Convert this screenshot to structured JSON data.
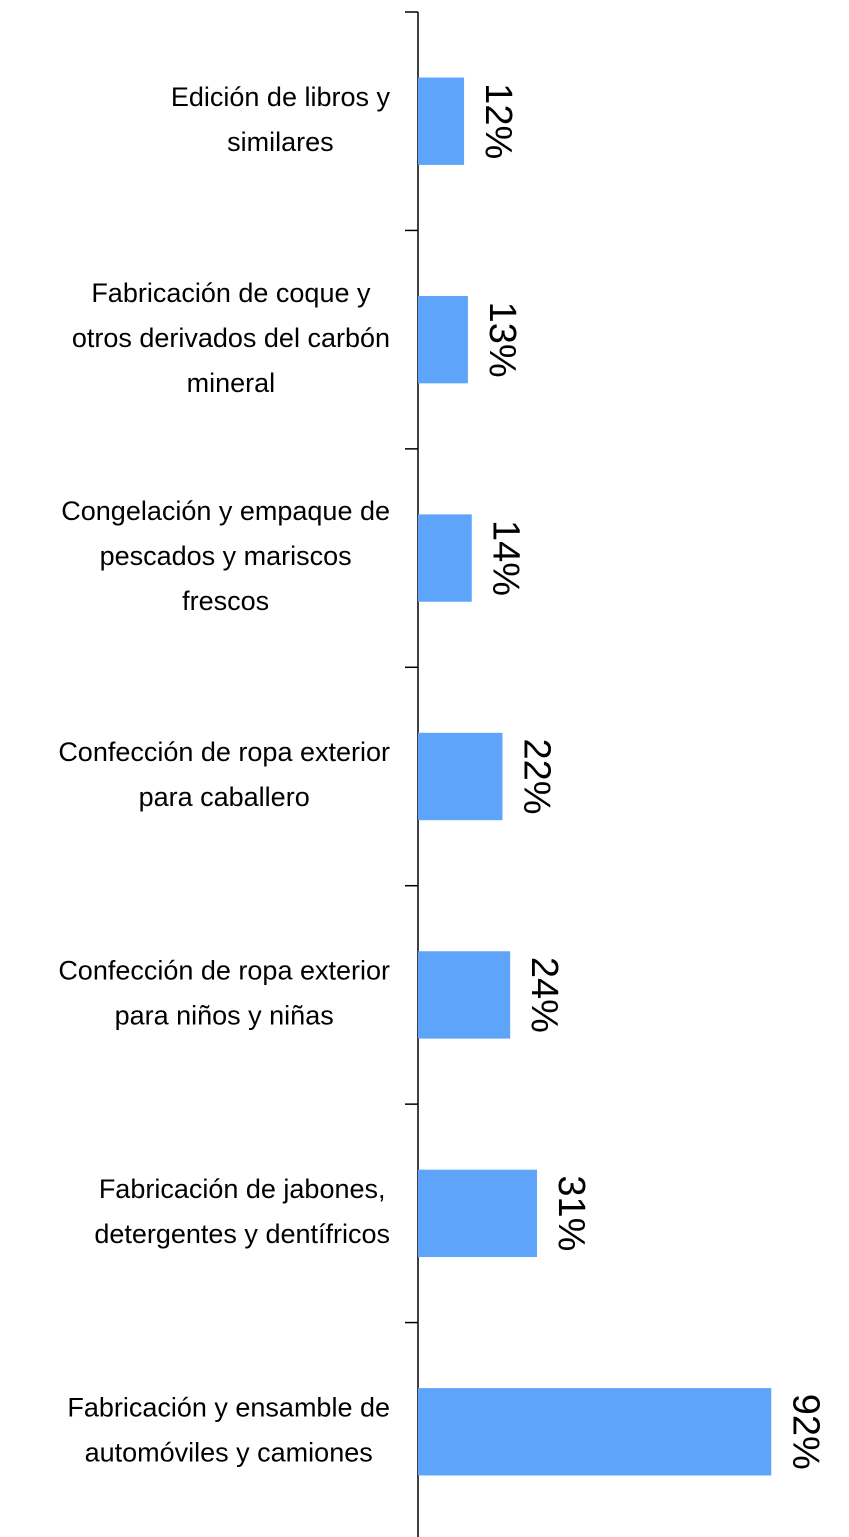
{
  "chart_data": {
    "type": "bar",
    "orientation": "horizontal",
    "categories": [
      [
        "Edición de libros y",
        "similares"
      ],
      [
        "Fabricación de coque y",
        "otros derivados del carbón",
        "mineral"
      ],
      [
        "Congelación y empaque de",
        "pescados y mariscos",
        "frescos"
      ],
      [
        "Confección de ropa exterior",
        "para caballero"
      ],
      [
        "Confección de ropa exterior",
        "para niños y niñas"
      ],
      [
        "Fabricación de jabones,",
        "detergentes y dentífricos"
      ],
      [
        "Fabricación y ensamble de",
        "automóviles y camiones"
      ]
    ],
    "values": [
      12,
      13,
      14,
      22,
      24,
      31,
      92
    ],
    "value_labels": [
      "12%",
      "13%",
      "14%",
      "22%",
      "24%",
      "31%",
      "92%"
    ],
    "color": "#5fa4fb",
    "xlim": [
      0,
      100
    ]
  }
}
